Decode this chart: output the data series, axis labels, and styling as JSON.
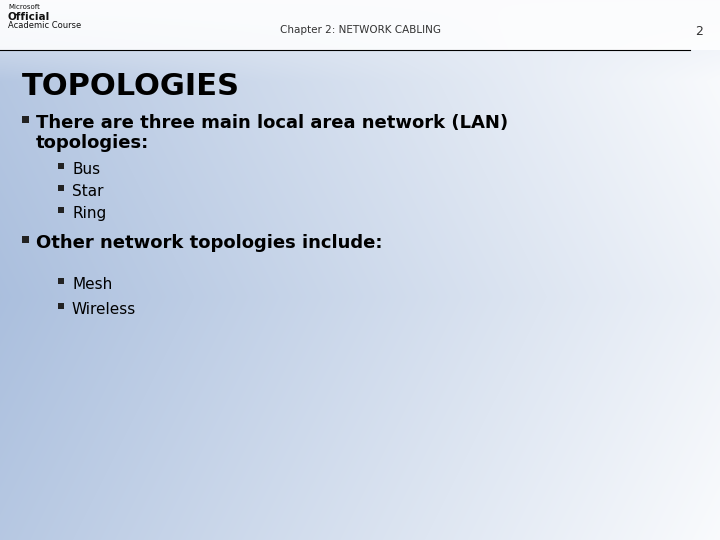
{
  "header_text": "Chapter 2: NETWORK CABLING",
  "page_number": "2",
  "logo_line1": "Microsoft",
  "logo_line2": "Official",
  "logo_line3": "Academic Course",
  "title": "TOPOLOGIES",
  "bullet1_text1": "There are three main local area network (LAN)",
  "bullet1_text2": "topologies:",
  "sub_bullets1": [
    "Bus",
    "Star",
    "Ring"
  ],
  "bullet2_text": "Other network topologies include:",
  "sub_bullets2": [
    "Mesh",
    "Wireless"
  ],
  "header_line_color": "#000000",
  "title_color": "#000000",
  "bullet_color": "#000000",
  "header_color": "#444444",
  "bullet_square_color": "#222222"
}
